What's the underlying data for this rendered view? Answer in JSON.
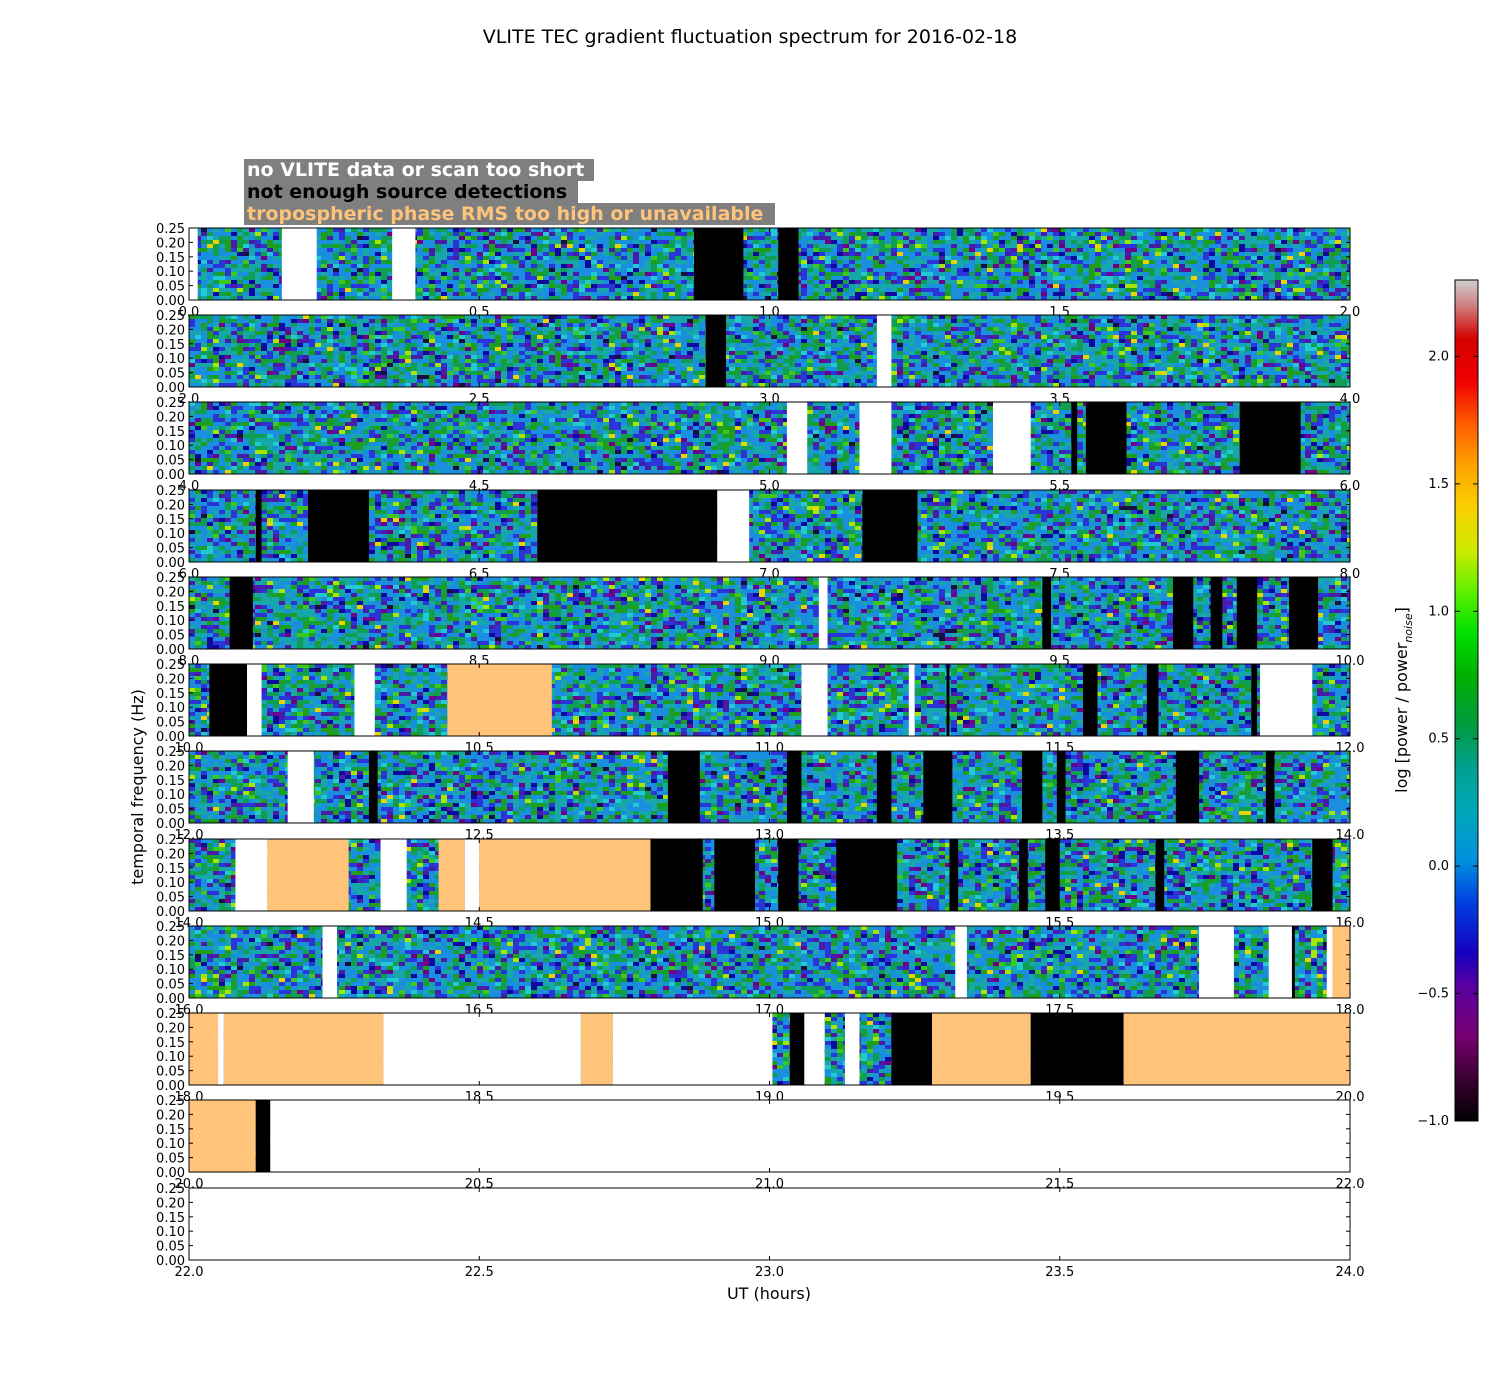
{
  "chart_data": {
    "type": "heatmap",
    "title": "VLITE TEC gradient fluctuation spectrum for 2016-02-18",
    "xlabel": "UT (hours)",
    "ylabel": "temporal frequency (Hz)",
    "ylim": [
      0,
      0.25
    ],
    "yticks": [
      "0.00",
      "0.05",
      "0.10",
      "0.15",
      "0.20",
      "0.25"
    ],
    "colorbar": {
      "label": "log [power / power",
      "label_sub": "noise",
      "label_end": "]",
      "range": [
        -1.0,
        2.3
      ],
      "ticks": [
        "−1.0",
        "−0.5",
        "0.0",
        "0.5",
        "1.0",
        "1.5",
        "2.0"
      ],
      "tick_values": [
        -1.0,
        -0.5,
        0.0,
        0.5,
        1.0,
        1.5,
        2.0
      ]
    },
    "legend": [
      {
        "label": "no VLITE data or scan too short",
        "status": "no_data",
        "text_color": "#ffffff"
      },
      {
        "label": "not enough source detections",
        "status": "few_detections",
        "text_color": "#000000"
      },
      {
        "label": "tropospheric phase RMS too high or unavailable",
        "status": "tropo",
        "text_color": "#ffc47a"
      }
    ],
    "status_colors": {
      "no_data": "#ffffff",
      "few_detections": "#000000",
      "tropo": "#ffc47a"
    },
    "panels": [
      {
        "xrange": [
          0,
          2
        ],
        "xticks": [
          "0.0",
          "0.5",
          "1.0",
          "1.5",
          "2.0"
        ],
        "flags": [
          [
            "no_data",
            0.0,
            0.015
          ],
          [
            "no_data",
            0.16,
            0.22
          ],
          [
            "no_data",
            0.35,
            0.39
          ],
          [
            "few_detections",
            0.87,
            0.955
          ],
          [
            "few_detections",
            1.015,
            1.05
          ]
        ]
      },
      {
        "xrange": [
          2,
          4
        ],
        "xticks": [
          "2.0",
          "2.5",
          "3.0",
          "3.5",
          "4.0"
        ],
        "flags": [
          [
            "few_detections",
            2.89,
            2.925
          ],
          [
            "no_data",
            3.185,
            3.21
          ]
        ]
      },
      {
        "xrange": [
          4,
          6
        ],
        "xticks": [
          "4.0",
          "4.5",
          "5.0",
          "5.5",
          "6.0"
        ],
        "flags": [
          [
            "no_data",
            5.03,
            5.065
          ],
          [
            "no_data",
            5.155,
            5.21
          ],
          [
            "no_data",
            5.385,
            5.45
          ],
          [
            "few_detections",
            5.52,
            5.53
          ],
          [
            "few_detections",
            5.545,
            5.615
          ],
          [
            "few_detections",
            5.81,
            5.915
          ]
        ]
      },
      {
        "xrange": [
          6,
          8
        ],
        "xticks": [
          "6.0",
          "6.5",
          "7.0",
          "7.5",
          "8.0"
        ],
        "flags": [
          [
            "few_detections",
            6.115,
            6.125
          ],
          [
            "few_detections",
            6.205,
            6.31
          ],
          [
            "few_detections",
            6.6,
            6.91
          ],
          [
            "no_data",
            6.91,
            6.965
          ],
          [
            "few_detections",
            7.16,
            7.255
          ]
        ]
      },
      {
        "xrange": [
          8,
          10
        ],
        "xticks": [
          "8.0",
          "8.5",
          "9.0",
          "9.5",
          "10.0"
        ],
        "flags": [
          [
            "few_detections",
            8.07,
            8.11
          ],
          [
            "no_data",
            9.085,
            9.1
          ],
          [
            "few_detections",
            9.47,
            9.485
          ],
          [
            "few_detections",
            9.695,
            9.73
          ],
          [
            "few_detections",
            9.76,
            9.78
          ],
          [
            "few_detections",
            9.805,
            9.84
          ],
          [
            "few_detections",
            9.895,
            9.945
          ]
        ]
      },
      {
        "xrange": [
          10,
          12
        ],
        "xticks": [
          "10.0",
          "10.5",
          "11.0",
          "11.5",
          "12.0"
        ],
        "flags": [
          [
            "few_detections",
            10.035,
            10.1
          ],
          [
            "no_data",
            10.1,
            10.125
          ],
          [
            "no_data",
            10.285,
            10.32
          ],
          [
            "tropo",
            10.445,
            10.625
          ],
          [
            "no_data",
            11.055,
            11.1
          ],
          [
            "no_data",
            11.24,
            11.25
          ],
          [
            "few_detections",
            11.305,
            11.31
          ],
          [
            "few_detections",
            11.54,
            11.565
          ],
          [
            "few_detections",
            11.65,
            11.67
          ],
          [
            "few_detections",
            11.83,
            11.84
          ],
          [
            "no_data",
            11.845,
            11.935
          ]
        ]
      },
      {
        "xrange": [
          12,
          14
        ],
        "xticks": [
          "12.0",
          "12.5",
          "13.0",
          "13.5",
          "14.0"
        ],
        "flags": [
          [
            "no_data",
            12.17,
            12.215
          ],
          [
            "few_detections",
            12.31,
            12.325
          ],
          [
            "few_detections",
            12.825,
            12.88
          ],
          [
            "few_detections",
            13.03,
            13.055
          ],
          [
            "few_detections",
            13.185,
            13.21
          ],
          [
            "few_detections",
            13.265,
            13.315
          ],
          [
            "few_detections",
            13.435,
            13.47
          ],
          [
            "few_detections",
            13.495,
            13.51
          ],
          [
            "few_detections",
            13.7,
            13.74
          ],
          [
            "few_detections",
            13.855,
            13.87
          ]
        ]
      },
      {
        "xrange": [
          14,
          16
        ],
        "xticks": [
          "14.0",
          "14.5",
          "15.0",
          "15.5",
          "16.0"
        ],
        "flags": [
          [
            "no_data",
            14.08,
            14.135
          ],
          [
            "tropo",
            14.135,
            14.275
          ],
          [
            "no_data",
            14.33,
            14.375
          ],
          [
            "tropo",
            14.43,
            14.475
          ],
          [
            "no_data",
            14.475,
            14.5
          ],
          [
            "tropo",
            14.5,
            14.795
          ],
          [
            "few_detections",
            14.795,
            14.885
          ],
          [
            "few_detections",
            14.905,
            14.975
          ],
          [
            "few_detections",
            15.015,
            15.05
          ],
          [
            "few_detections",
            15.115,
            15.22
          ],
          [
            "few_detections",
            15.31,
            15.325
          ],
          [
            "few_detections",
            15.43,
            15.445
          ],
          [
            "few_detections",
            15.475,
            15.5
          ],
          [
            "few_detections",
            15.665,
            15.68
          ],
          [
            "few_detections",
            15.935,
            15.97
          ]
        ]
      },
      {
        "xrange": [
          16,
          18
        ],
        "xticks": [
          "16.0",
          "16.5",
          "17.0",
          "17.5",
          "18.0"
        ],
        "flags": [
          [
            "no_data",
            16.23,
            16.255
          ],
          [
            "no_data",
            17.32,
            17.34
          ],
          [
            "no_data",
            17.74,
            17.8
          ],
          [
            "no_data",
            17.86,
            17.9
          ],
          [
            "few_detections",
            17.9,
            17.905
          ],
          [
            "no_data",
            17.96,
            17.97
          ],
          [
            "tropo",
            17.97,
            18.0
          ]
        ]
      },
      {
        "xrange": [
          18,
          20
        ],
        "xticks": [
          "18.0",
          "18.5",
          "19.0",
          "19.5",
          "20.0"
        ],
        "flags": [
          [
            "tropo",
            18.0,
            18.05
          ],
          [
            "no_data",
            18.05,
            18.06
          ],
          [
            "tropo",
            18.06,
            18.335
          ],
          [
            "no_data",
            18.335,
            18.675
          ],
          [
            "tropo",
            18.675,
            18.73
          ],
          [
            "no_data",
            18.73,
            19.005
          ],
          [
            "few_detections",
            19.035,
            19.06
          ],
          [
            "no_data",
            19.06,
            19.095
          ],
          [
            "no_data",
            19.13,
            19.155
          ],
          [
            "few_detections",
            19.21,
            19.28
          ],
          [
            "tropo",
            19.28,
            19.45
          ],
          [
            "few_detections",
            19.45,
            19.61
          ],
          [
            "tropo",
            19.61,
            20.0
          ]
        ]
      },
      {
        "xrange": [
          20,
          22
        ],
        "xticks": [
          "20.0",
          "20.5",
          "21.0",
          "21.5",
          "22.0"
        ],
        "flags": [
          [
            "tropo",
            20.0,
            20.115
          ],
          [
            "few_detections",
            20.115,
            20.14
          ],
          [
            "no_data",
            20.14,
            22.0
          ]
        ]
      },
      {
        "xrange": [
          22,
          24
        ],
        "xticks": [
          "22.0",
          "22.5",
          "23.0",
          "23.5",
          "24.0"
        ],
        "flags": [
          [
            "no_data",
            22.0,
            24.0
          ]
        ]
      }
    ]
  }
}
